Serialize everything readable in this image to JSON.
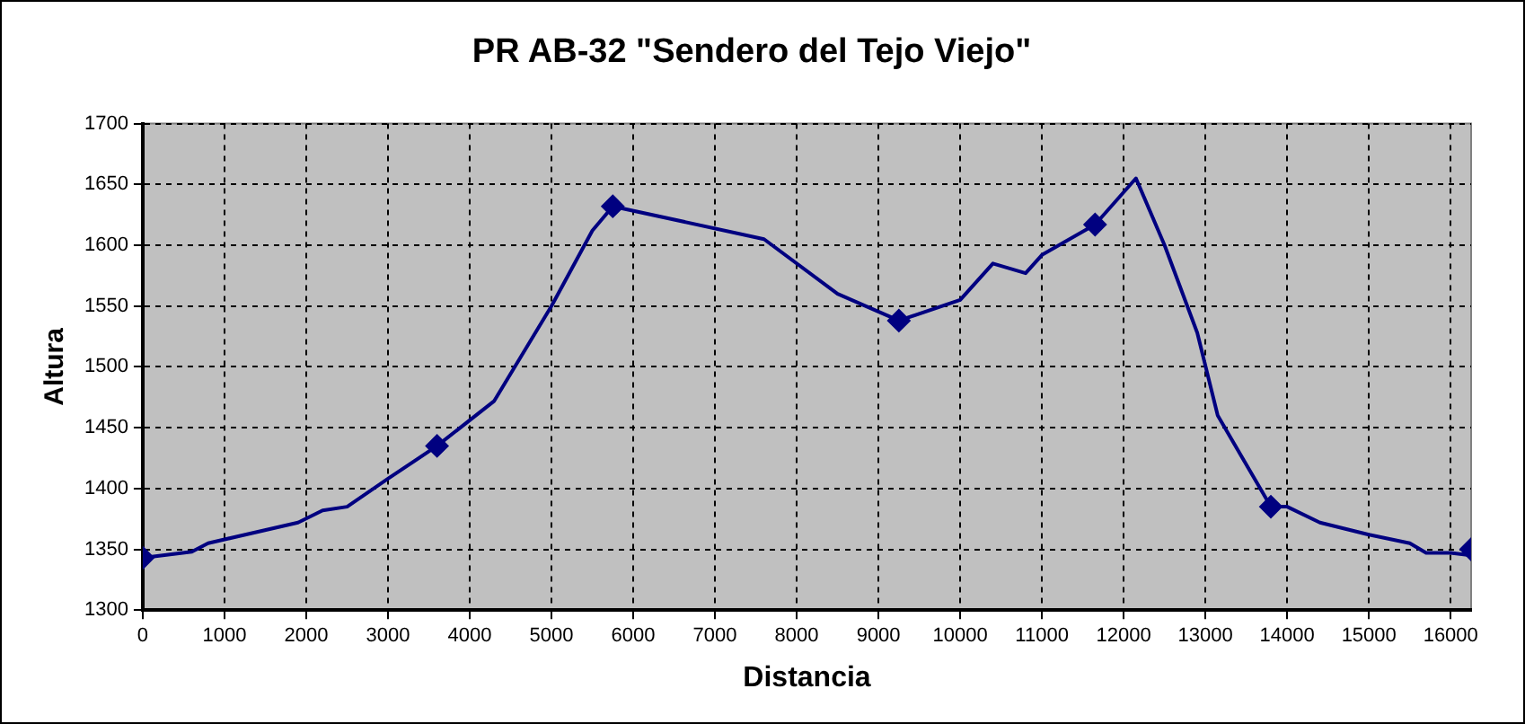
{
  "chart_data": {
    "type": "line",
    "title": "PR AB-32 \"Sendero del Tejo Viejo\"",
    "xlabel": "Distancia",
    "ylabel": "Altura",
    "xlim": [
      0,
      16250
    ],
    "xticks": [
      0,
      1000,
      2000,
      3000,
      4000,
      5000,
      6000,
      7000,
      8000,
      9000,
      10000,
      11000,
      12000,
      13000,
      14000,
      15000,
      16000
    ],
    "ylim": [
      1300,
      1700
    ],
    "yticks": [
      1300,
      1350,
      1400,
      1450,
      1500,
      1550,
      1600,
      1650,
      1700
    ],
    "grid": true,
    "legend": false,
    "marker": "none",
    "line_style": "solid",
    "series": [
      {
        "color": "#000080",
        "x": [
          0,
          600,
          800,
          1900,
          2200,
          2500,
          3000,
          3600,
          4300,
          5000,
          5500,
          5750,
          7600,
          8500,
          9250,
          10000,
          10400,
          10800,
          11000,
          11650,
          12150,
          12500,
          12900,
          13150,
          13800,
          14000,
          14400,
          15000,
          15500,
          15700,
          16000,
          16250
        ],
        "values": [
          1343,
          1348,
          1355,
          1372,
          1382,
          1385,
          1408,
          1435,
          1472,
          1550,
          1612,
          1632,
          1605,
          1560,
          1538,
          1555,
          1585,
          1577,
          1592,
          1617,
          1655,
          1600,
          1528,
          1460,
          1385,
          1385,
          1372,
          1362,
          1355,
          1347,
          1347,
          1345
        ]
      },
      {
        "type": "scatter",
        "marker": "diamond",
        "color": "#000080",
        "x": [
          0,
          3600,
          5750,
          9250,
          11650,
          13800,
          16250
        ],
        "values": [
          1343,
          1435,
          1632,
          1538,
          1617,
          1385,
          1350
        ]
      }
    ]
  }
}
